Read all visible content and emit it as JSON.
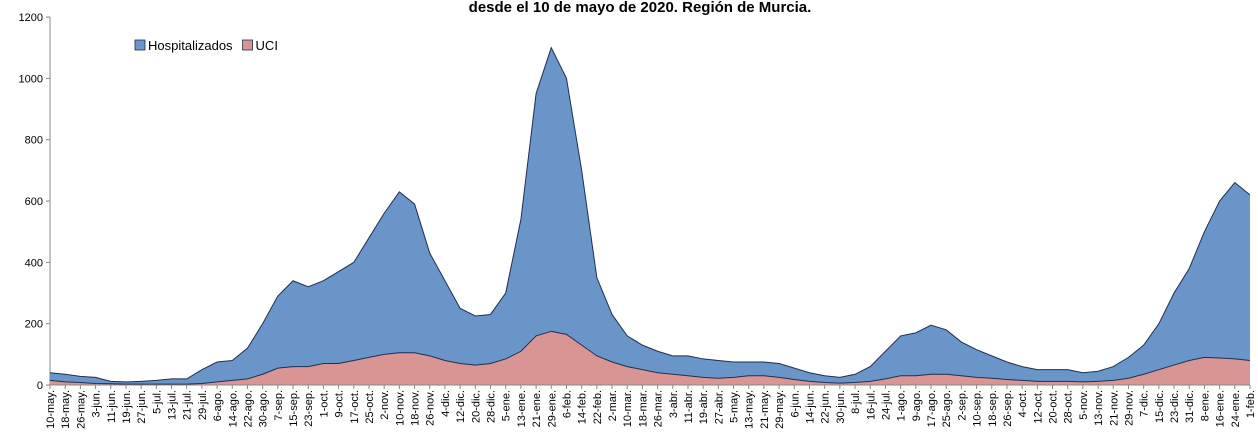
{
  "chart_data": {
    "type": "area",
    "title": "desde el 10 de mayo de 2020. Región de Murcia.",
    "categories": [
      "10-may.",
      "18-may.",
      "26-may.",
      "3-jun.",
      "11-jun.",
      "19-jun.",
      "27-jun.",
      "5-jul.",
      "13-jul.",
      "21-jul.",
      "29-jul.",
      "6-ago.",
      "14-ago.",
      "22-ago.",
      "30-ago.",
      "7-sep.",
      "15-sep.",
      "23-sep.",
      "1-oct.",
      "9-oct.",
      "17-oct.",
      "25-oct.",
      "2-nov.",
      "10-nov.",
      "18-nov.",
      "26-nov.",
      "4-dic.",
      "12-dic.",
      "20-dic.",
      "28-dic.",
      "5-ene.",
      "13-ene.",
      "21-ene.",
      "29-ene.",
      "6-feb.",
      "14-feb.",
      "22-feb.",
      "2-mar.",
      "10-mar.",
      "18-mar.",
      "26-mar.",
      "3-abr.",
      "11-abr.",
      "19-abr.",
      "27-abr.",
      "5-may.",
      "13-may.",
      "21-may.",
      "29-may.",
      "6-jun.",
      "14-jun.",
      "22-jun.",
      "30-jun.",
      "8-jul.",
      "16-jul.",
      "24-jul.",
      "1-ago.",
      "9-ago.",
      "17-ago.",
      "25-ago.",
      "2-sep.",
      "10-sep.",
      "18-sep.",
      "26-sep.",
      "4-oct.",
      "12-oct.",
      "20-oct.",
      "28-oct.",
      "5-nov.",
      "13-nov.",
      "21-nov.",
      "29-nov.",
      "7-dic.",
      "15-dic.",
      "23-dic.",
      "31-dic.",
      "8-ene.",
      "16-ene.",
      "24-ene.",
      "1-feb."
    ],
    "series": [
      {
        "name": "Hospitalizados",
        "color": "#6a95c9",
        "values": [
          40,
          35,
          28,
          25,
          12,
          10,
          12,
          15,
          20,
          20,
          50,
          75,
          80,
          120,
          200,
          290,
          340,
          320,
          340,
          370,
          400,
          480,
          560,
          630,
          590,
          430,
          340,
          250,
          225,
          230,
          300,
          540,
          950,
          1100,
          1000,
          700,
          350,
          230,
          160,
          130,
          110,
          95,
          95,
          85,
          80,
          75,
          75,
          75,
          70,
          55,
          40,
          30,
          25,
          35,
          60,
          110,
          160,
          170,
          195,
          180,
          140,
          115,
          95,
          75,
          60,
          50,
          50,
          50,
          40,
          45,
          60,
          90,
          130,
          200,
          300,
          380,
          500,
          600,
          660,
          620
        ]
      },
      {
        "name": "UCI",
        "color": "#d99594",
        "values": [
          15,
          10,
          8,
          5,
          4,
          3,
          3,
          3,
          3,
          3,
          5,
          10,
          15,
          20,
          35,
          55,
          60,
          60,
          70,
          70,
          80,
          90,
          100,
          105,
          105,
          95,
          80,
          70,
          65,
          70,
          85,
          110,
          160,
          175,
          165,
          130,
          95,
          75,
          60,
          50,
          40,
          35,
          30,
          25,
          22,
          25,
          30,
          30,
          25,
          18,
          12,
          8,
          6,
          8,
          12,
          20,
          30,
          30,
          35,
          35,
          30,
          25,
          22,
          18,
          15,
          12,
          12,
          12,
          10,
          12,
          15,
          22,
          35,
          50,
          65,
          80,
          90,
          88,
          85,
          80
        ]
      }
    ],
    "ylim": [
      0,
      1200
    ],
    "yticks": [
      0,
      200,
      400,
      600,
      800,
      1000,
      1200
    ]
  }
}
